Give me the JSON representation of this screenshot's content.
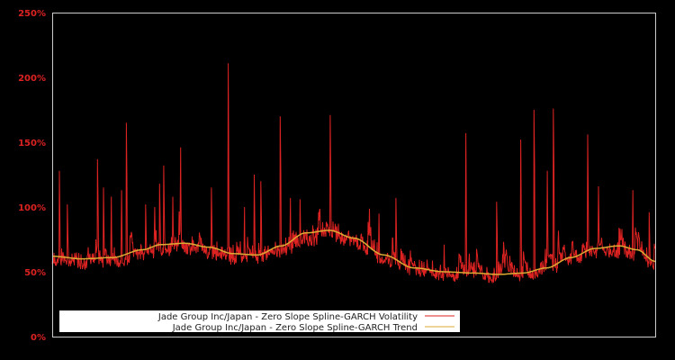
{
  "chart_data": {
    "type": "line",
    "title": "",
    "xlabel": "",
    "ylabel": "",
    "ylim": [
      0,
      250
    ],
    "y_ticks": [
      {
        "value": 0,
        "label": "0%"
      },
      {
        "value": 50,
        "label": "50%"
      },
      {
        "value": 100,
        "label": "100%"
      },
      {
        "value": 150,
        "label": "150%"
      },
      {
        "value": 200,
        "label": "200%"
      },
      {
        "value": 250,
        "label": "250%"
      }
    ],
    "grid": false,
    "legend_position": "lower-left",
    "background": "#000000",
    "series": [
      {
        "name": "Jade Group Inc/Japan - Zero Slope Spline-GARCH Volatility",
        "color": "#dd2222",
        "description": "Daily volatility (%), noisy series oscillating around trend with spikes",
        "spikes": [
          {
            "x": 0.012,
            "y": 128
          },
          {
            "x": 0.025,
            "y": 102
          },
          {
            "x": 0.075,
            "y": 137
          },
          {
            "x": 0.085,
            "y": 115
          },
          {
            "x": 0.098,
            "y": 108
          },
          {
            "x": 0.115,
            "y": 113
          },
          {
            "x": 0.123,
            "y": 165
          },
          {
            "x": 0.155,
            "y": 102
          },
          {
            "x": 0.17,
            "y": 100
          },
          {
            "x": 0.178,
            "y": 118
          },
          {
            "x": 0.185,
            "y": 132
          },
          {
            "x": 0.2,
            "y": 108
          },
          {
            "x": 0.213,
            "y": 146
          },
          {
            "x": 0.264,
            "y": 115
          },
          {
            "x": 0.292,
            "y": 211
          },
          {
            "x": 0.319,
            "y": 100
          },
          {
            "x": 0.335,
            "y": 125
          },
          {
            "x": 0.346,
            "y": 120
          },
          {
            "x": 0.378,
            "y": 170
          },
          {
            "x": 0.395,
            "y": 107
          },
          {
            "x": 0.411,
            "y": 106
          },
          {
            "x": 0.461,
            "y": 171
          },
          {
            "x": 0.542,
            "y": 95
          },
          {
            "x": 0.57,
            "y": 107
          },
          {
            "x": 0.65,
            "y": 71
          },
          {
            "x": 0.686,
            "y": 157
          },
          {
            "x": 0.737,
            "y": 104
          },
          {
            "x": 0.777,
            "y": 152
          },
          {
            "x": 0.799,
            "y": 175
          },
          {
            "x": 0.821,
            "y": 128
          },
          {
            "x": 0.831,
            "y": 176
          },
          {
            "x": 0.888,
            "y": 156
          },
          {
            "x": 0.906,
            "y": 116
          },
          {
            "x": 0.94,
            "y": 84
          },
          {
            "x": 0.963,
            "y": 113
          },
          {
            "x": 0.99,
            "y": 96
          }
        ]
      },
      {
        "name": "Jade Group Inc/Japan - Zero Slope Spline-GARCH Trend",
        "color": "#ddaa33",
        "x": [
          0.0,
          0.05,
          0.1,
          0.15,
          0.18,
          0.22,
          0.26,
          0.3,
          0.34,
          0.38,
          0.42,
          0.46,
          0.5,
          0.55,
          0.6,
          0.65,
          0.7,
          0.74,
          0.78,
          0.82,
          0.86,
          0.9,
          0.94,
          0.97,
          1.0
        ],
        "values": [
          62,
          60,
          61,
          67,
          71,
          72,
          69,
          64,
          63,
          70,
          80,
          82,
          76,
          63,
          53,
          50,
          49,
          48,
          49,
          53,
          61,
          68,
          70,
          67,
          58
        ]
      }
    ]
  },
  "legend": {
    "items": [
      {
        "label": "Jade Group Inc/Japan - Zero Slope Spline-GARCH Volatility",
        "color": "#dd2222"
      },
      {
        "label": "Jade Group Inc/Japan - Zero Slope Spline-GARCH Trend",
        "color": "#ddaa33"
      }
    ]
  }
}
